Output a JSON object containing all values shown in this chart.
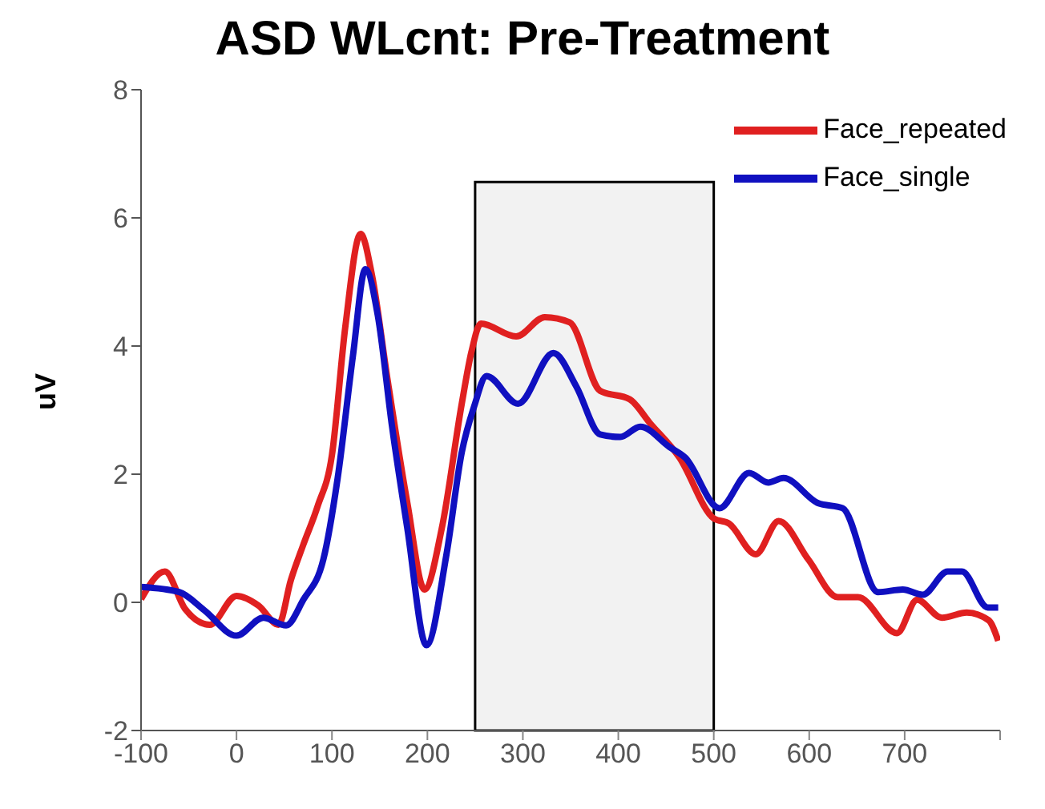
{
  "chart_data": {
    "type": "line",
    "title": "ASD WLcnt: Pre-Treatment",
    "ylabel": "uV",
    "xlim": [
      -100,
      800
    ],
    "xticks": [
      -100,
      0,
      100,
      200,
      300,
      400,
      500,
      600,
      700,
      {
        "value": 800,
        "label": null
      }
    ],
    "ylim": [
      -2,
      8
    ],
    "yticks": [
      -2,
      0,
      2,
      4,
      6,
      8
    ],
    "grid": false,
    "legend": "top right",
    "marker": "none",
    "line_style": "solid",
    "bands": [
      {
        "axis": "x",
        "from": 250,
        "to": 500,
        "color": "#000000"
      }
    ],
    "series": [
      {
        "name": "Face_repeated",
        "color": "#e02020",
        "x": [
          -100,
          -75,
          -54,
          -28,
          0,
          23,
          44,
          57,
          70,
          85,
          100,
          114,
          130,
          142,
          158,
          179,
          197,
          215,
          236,
          246,
          256,
          293,
          323,
          349,
          381,
          412,
          433,
          464,
          500,
          516,
          544,
          568,
          599,
          630,
          651,
          692,
          713,
          739,
          765,
          788,
          798
        ],
        "values": [
          0.05,
          0.48,
          -0.1,
          -0.35,
          0.1,
          -0.05,
          -0.35,
          0.35,
          0.9,
          1.5,
          2.3,
          4.3,
          5.75,
          5.1,
          3.5,
          1.55,
          0.2,
          1.15,
          3.1,
          3.9,
          4.35,
          4.15,
          4.45,
          4.37,
          3.3,
          3.17,
          2.8,
          2.26,
          1.31,
          1.23,
          0.75,
          1.27,
          0.67,
          0.08,
          0.08,
          -0.48,
          0.04,
          -0.24,
          -0.16,
          -0.28,
          -0.6
        ]
      },
      {
        "name": "Face_single",
        "color": "#1010c0",
        "x": [
          -100,
          -60,
          -34,
          0,
          28,
          52,
          70,
          91,
          106,
          122,
          135,
          148,
          163,
          179,
          199,
          220,
          236,
          249,
          262,
          295,
          332,
          356,
          381,
          402,
          423,
          454,
          470,
          506,
          537,
          557,
          573,
          609,
          635,
          672,
          698,
          719,
          745,
          760,
          787,
          798
        ],
        "values": [
          0.24,
          0.16,
          -0.12,
          -0.52,
          -0.24,
          -0.36,
          0.04,
          0.67,
          1.94,
          3.85,
          5.2,
          4.48,
          2.74,
          1.15,
          -0.67,
          0.75,
          2.34,
          3.06,
          3.53,
          3.1,
          3.89,
          3.37,
          2.62,
          2.58,
          2.74,
          2.42,
          2.26,
          1.47,
          2.02,
          1.87,
          1.94,
          1.55,
          1.47,
          0.16,
          0.2,
          0.12,
          0.48,
          0.48,
          -0.08,
          -0.08
        ]
      }
    ]
  }
}
